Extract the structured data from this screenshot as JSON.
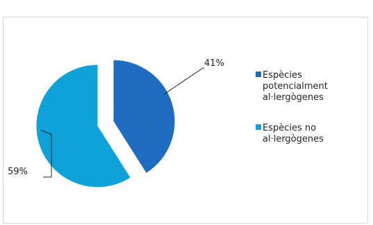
{
  "chart_data": {
    "type": "pie",
    "slices": [
      {
        "label": "Espècies potencialment al·lergògenes",
        "value": 41,
        "color": "#1f6cc0",
        "display": "41%",
        "legend_lines": [
          "Espècies",
          "potencialment",
          "al·lergògenes"
        ]
      },
      {
        "label": "Espècies no al·lergògenes",
        "value": 59,
        "color": "#0ea2d8",
        "display": "59%",
        "legend_lines": [
          "Espècies no",
          "al·lergògenes"
        ]
      }
    ],
    "legend_position": "right",
    "exploded": true
  }
}
